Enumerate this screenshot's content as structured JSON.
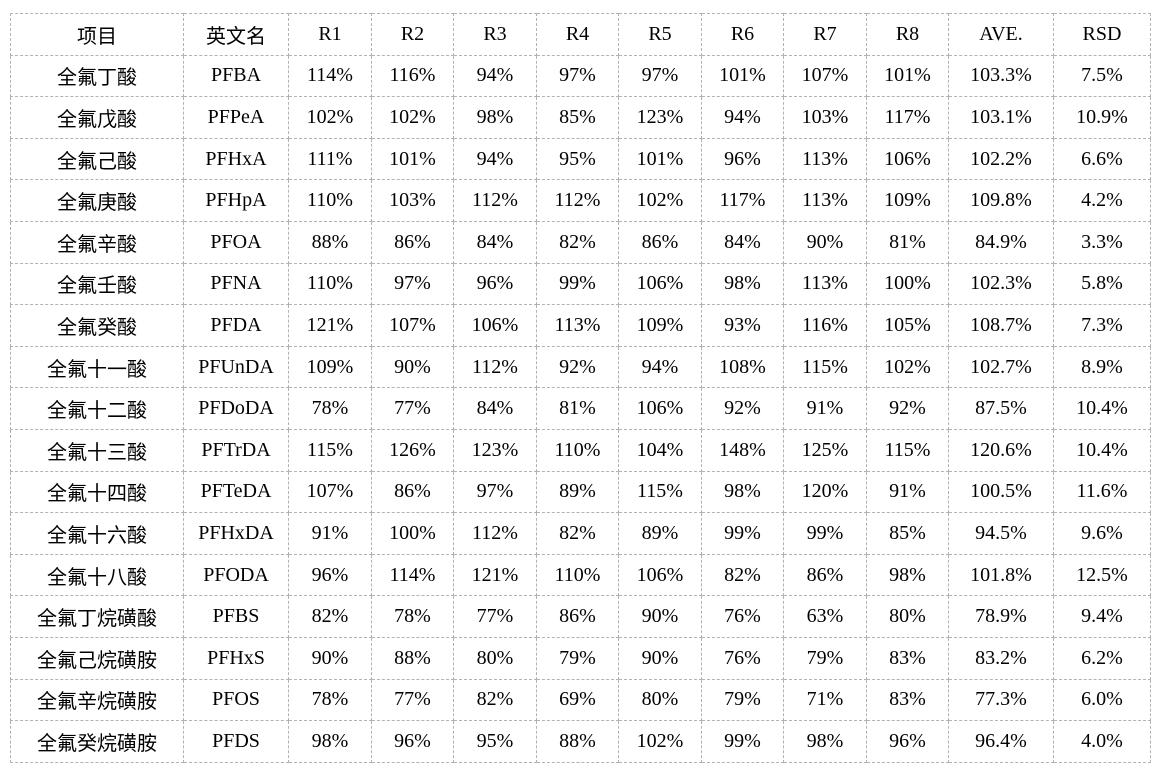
{
  "colors": {
    "background": "#ffffff",
    "grid_border": "#b2b2b2",
    "text": "#000000"
  },
  "table": {
    "columns": [
      "项目",
      "英文名",
      "R1",
      "R2",
      "R3",
      "R4",
      "R5",
      "R6",
      "R7",
      "R8",
      "AVE.",
      "RSD"
    ],
    "rows": [
      [
        "全氟丁酸",
        "PFBA",
        "114%",
        "116%",
        "94%",
        "97%",
        "97%",
        "101%",
        "107%",
        "101%",
        "103.3%",
        "7.5%"
      ],
      [
        "全氟戊酸",
        "PFPeA",
        "102%",
        "102%",
        "98%",
        "85%",
        "123%",
        "94%",
        "103%",
        "117%",
        "103.1%",
        "10.9%"
      ],
      [
        "全氟己酸",
        "PFHxA",
        "111%",
        "101%",
        "94%",
        "95%",
        "101%",
        "96%",
        "113%",
        "106%",
        "102.2%",
        "6.6%"
      ],
      [
        "全氟庚酸",
        "PFHpA",
        "110%",
        "103%",
        "112%",
        "112%",
        "102%",
        "117%",
        "113%",
        "109%",
        "109.8%",
        "4.2%"
      ],
      [
        "全氟辛酸",
        "PFOA",
        "88%",
        "86%",
        "84%",
        "82%",
        "86%",
        "84%",
        "90%",
        "81%",
        "84.9%",
        "3.3%"
      ],
      [
        "全氟壬酸",
        "PFNA",
        "110%",
        "97%",
        "96%",
        "99%",
        "106%",
        "98%",
        "113%",
        "100%",
        "102.3%",
        "5.8%"
      ],
      [
        "全氟癸酸",
        "PFDA",
        "121%",
        "107%",
        "106%",
        "113%",
        "109%",
        "93%",
        "116%",
        "105%",
        "108.7%",
        "7.3%"
      ],
      [
        "全氟十一酸",
        "PFUnDA",
        "109%",
        "90%",
        "112%",
        "92%",
        "94%",
        "108%",
        "115%",
        "102%",
        "102.7%",
        "8.9%"
      ],
      [
        "全氟十二酸",
        "PFDoDA",
        "78%",
        "77%",
        "84%",
        "81%",
        "106%",
        "92%",
        "91%",
        "92%",
        "87.5%",
        "10.4%"
      ],
      [
        "全氟十三酸",
        "PFTrDA",
        "115%",
        "126%",
        "123%",
        "110%",
        "104%",
        "148%",
        "125%",
        "115%",
        "120.6%",
        "10.4%"
      ],
      [
        "全氟十四酸",
        "PFTeDA",
        "107%",
        "86%",
        "97%",
        "89%",
        "115%",
        "98%",
        "120%",
        "91%",
        "100.5%",
        "11.6%"
      ],
      [
        "全氟十六酸",
        "PFHxDA",
        "91%",
        "100%",
        "112%",
        "82%",
        "89%",
        "99%",
        "99%",
        "85%",
        "94.5%",
        "9.6%"
      ],
      [
        "全氟十八酸",
        "PFODA",
        "96%",
        "114%",
        "121%",
        "110%",
        "106%",
        "82%",
        "86%",
        "98%",
        "101.8%",
        "12.5%"
      ],
      [
        "全氟丁烷磺酸",
        "PFBS",
        "82%",
        "78%",
        "77%",
        "86%",
        "90%",
        "76%",
        "63%",
        "80%",
        "78.9%",
        "9.4%"
      ],
      [
        "全氟己烷磺胺",
        "PFHxS",
        "90%",
        "88%",
        "80%",
        "79%",
        "90%",
        "76%",
        "79%",
        "83%",
        "83.2%",
        "6.2%"
      ],
      [
        "全氟辛烷磺胺",
        "PFOS",
        "78%",
        "77%",
        "82%",
        "69%",
        "80%",
        "79%",
        "71%",
        "83%",
        "77.3%",
        "6.0%"
      ],
      [
        "全氟癸烷磺胺",
        "PFDS",
        "98%",
        "96%",
        "95%",
        "88%",
        "102%",
        "99%",
        "98%",
        "96%",
        "96.4%",
        "4.0%"
      ]
    ],
    "column_cell_names": [
      "item-cell",
      "abbr-cell",
      "r1-cell",
      "r2-cell",
      "r3-cell",
      "r4-cell",
      "r5-cell",
      "r6-cell",
      "r7-cell",
      "r8-cell",
      "ave-cell",
      "rsd-cell"
    ]
  }
}
